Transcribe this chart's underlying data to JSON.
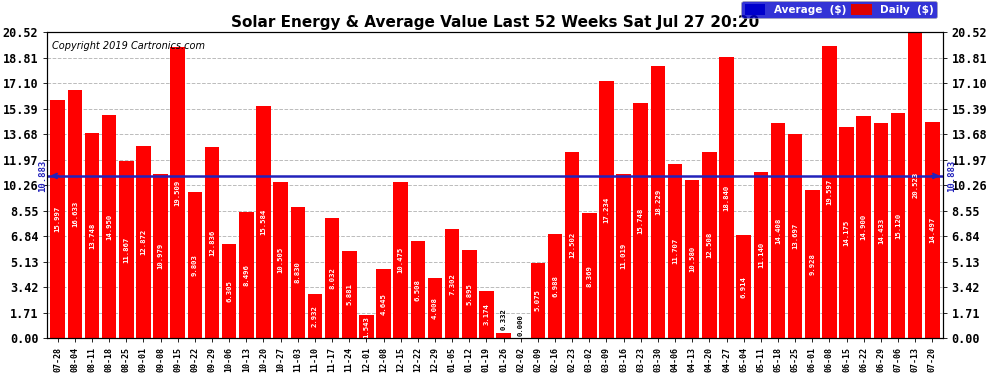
{
  "title": "Solar Energy & Average Value Last 52 Weeks Sat Jul 27 20:20",
  "copyright": "Copyright 2019 Cartronics.com",
  "average_value": 10.883,
  "bar_color": "#ff0000",
  "average_line_color": "#2222bb",
  "background_color": "#ffffff",
  "grid_color": "#bbbbbb",
  "yticks": [
    0.0,
    1.71,
    3.42,
    5.13,
    6.84,
    8.55,
    10.26,
    11.97,
    13.68,
    15.39,
    17.1,
    18.81,
    20.52
  ],
  "legend_avg_bg": "#0000cc",
  "legend_daily_bg": "#dd0000",
  "categories": [
    "07-28",
    "08-04",
    "08-11",
    "08-18",
    "08-25",
    "09-01",
    "09-08",
    "09-15",
    "09-22",
    "09-29",
    "10-06",
    "10-13",
    "10-20",
    "10-27",
    "11-03",
    "11-10",
    "11-17",
    "11-24",
    "12-01",
    "12-08",
    "12-15",
    "12-22",
    "12-29",
    "01-05",
    "01-12",
    "01-19",
    "01-26",
    "02-02",
    "02-09",
    "02-16",
    "02-23",
    "03-02",
    "03-09",
    "03-16",
    "03-23",
    "03-30",
    "04-06",
    "04-13",
    "04-20",
    "04-27",
    "05-04",
    "05-11",
    "05-18",
    "05-25",
    "06-01",
    "06-08",
    "06-15",
    "06-22",
    "06-29",
    "07-06",
    "07-13",
    "07-20"
  ],
  "values": [
    15.997,
    16.633,
    13.748,
    14.95,
    11.867,
    12.872,
    10.979,
    19.509,
    9.803,
    12.836,
    6.305,
    8.496,
    15.584,
    10.505,
    8.83,
    2.932,
    8.032,
    5.881,
    1.543,
    4.645,
    10.475,
    6.508,
    4.008,
    7.302,
    5.895,
    3.174,
    0.332,
    0.0,
    5.075,
    6.988,
    12.502,
    8.369,
    17.234,
    11.019,
    15.748,
    18.229,
    11.707,
    10.58,
    12.508,
    18.84,
    6.914,
    11.14,
    14.408,
    13.697,
    9.928,
    19.597,
    14.175,
    14.9,
    14.433,
    15.12,
    20.523,
    14.497
  ]
}
